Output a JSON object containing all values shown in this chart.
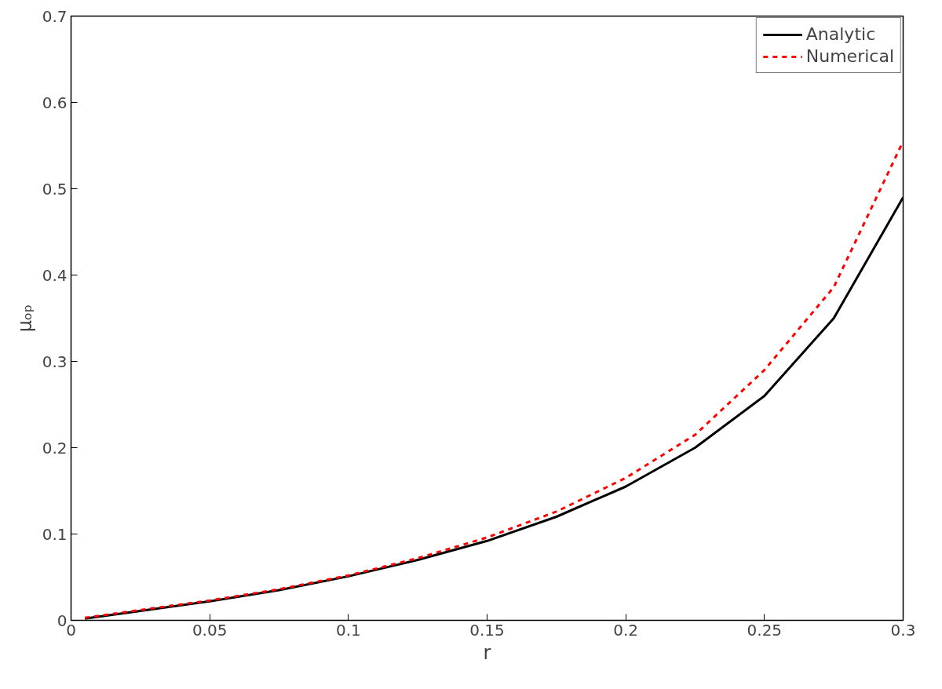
{
  "chart_data": {
    "type": "line",
    "xlabel": "r",
    "ylabel": "μₒₚ",
    "xlim": [
      0,
      0.3
    ],
    "ylim": [
      0,
      0.7
    ],
    "xticks": [
      0,
      0.05,
      0.1,
      0.15,
      0.2,
      0.25,
      0.3
    ],
    "yticks": [
      0,
      0.1,
      0.2,
      0.3,
      0.4,
      0.5,
      0.6,
      0.7
    ],
    "x": [
      0.005,
      0.025,
      0.05,
      0.075,
      0.1,
      0.125,
      0.15,
      0.175,
      0.2,
      0.225,
      0.25,
      0.275,
      0.3
    ],
    "series": [
      {
        "name": "Analytic",
        "color": "#000000",
        "line_style": "solid",
        "values": [
          0.002,
          0.011,
          0.022,
          0.035,
          0.051,
          0.07,
          0.092,
          0.12,
          0.155,
          0.2,
          0.26,
          0.35,
          0.49
        ]
      },
      {
        "name": "Numerical",
        "color": "#ff0000",
        "line_style": "dashed",
        "values": [
          0.003,
          0.012,
          0.023,
          0.036,
          0.052,
          0.072,
          0.096,
          0.126,
          0.165,
          0.215,
          0.29,
          0.386,
          0.555
        ]
      }
    ],
    "grid": false,
    "legend": "top right"
  }
}
